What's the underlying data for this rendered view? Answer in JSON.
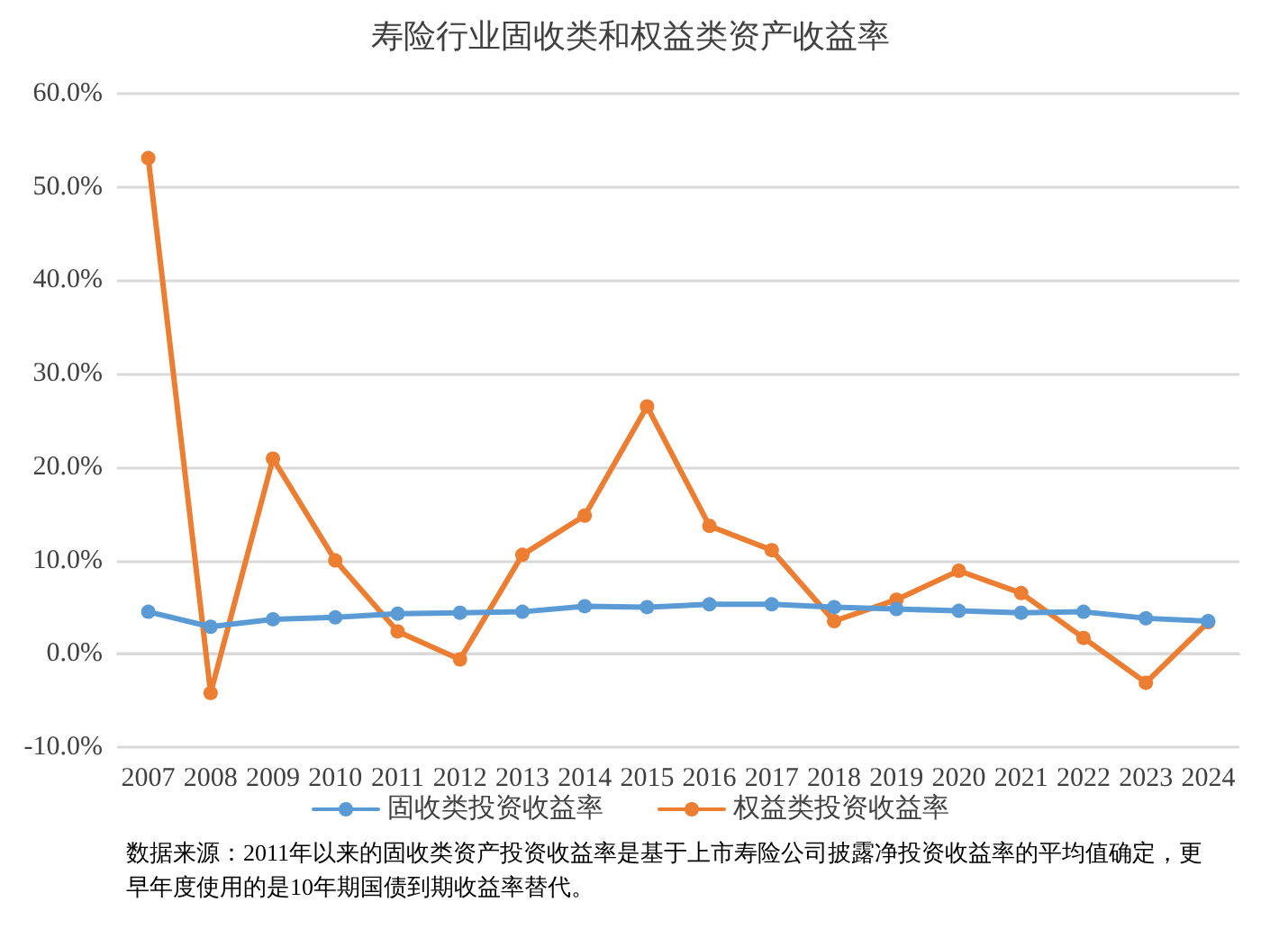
{
  "chart_data": {
    "type": "line",
    "title": "寿险行业固收类和权益类资产收益率",
    "categories": [
      "2007",
      "2008",
      "2009",
      "2010",
      "2011",
      "2012",
      "2013",
      "2014",
      "2015",
      "2016",
      "2017",
      "2018",
      "2019",
      "2020",
      "2021",
      "2022",
      "2023",
      "2024"
    ],
    "series": [
      {
        "name": "固收类投资收益率",
        "color": "#5b9bd5",
        "values": [
          4.5,
          2.9,
          3.7,
          3.9,
          4.3,
          4.4,
          4.5,
          5.1,
          5.0,
          5.3,
          5.3,
          5.0,
          4.8,
          4.6,
          4.4,
          4.5,
          3.8,
          3.5
        ]
      },
      {
        "name": "权益类投资收益率",
        "color": "#ed7d31",
        "values": [
          53.1,
          -4.2,
          20.9,
          10.0,
          2.4,
          -0.6,
          10.6,
          14.8,
          26.5,
          13.7,
          11.1,
          3.5,
          5.8,
          8.9,
          6.5,
          1.7,
          -3.1,
          3.4
        ]
      }
    ],
    "ylim": [
      -10,
      60
    ],
    "yticks": [
      {
        "value": -10,
        "label": "-10.0%"
      },
      {
        "value": 0,
        "label": "0.0%"
      },
      {
        "value": 10,
        "label": "10.0%"
      },
      {
        "value": 20,
        "label": "20.0%"
      },
      {
        "value": 30,
        "label": "30.0%"
      },
      {
        "value": 40,
        "label": "40.0%"
      },
      {
        "value": 50,
        "label": "50.0%"
      },
      {
        "value": 60,
        "label": "60.0%"
      }
    ],
    "grid": "y",
    "legend": "bottom",
    "marker": "circle",
    "line_style": "solid",
    "annotations": [
      "数据来源：2011年以来的固收类资产投资收益率是基于上市寿险公司披露净投资收益率的平均值确定，更早年度使用的是10年期国债到期收益率替代。"
    ]
  }
}
